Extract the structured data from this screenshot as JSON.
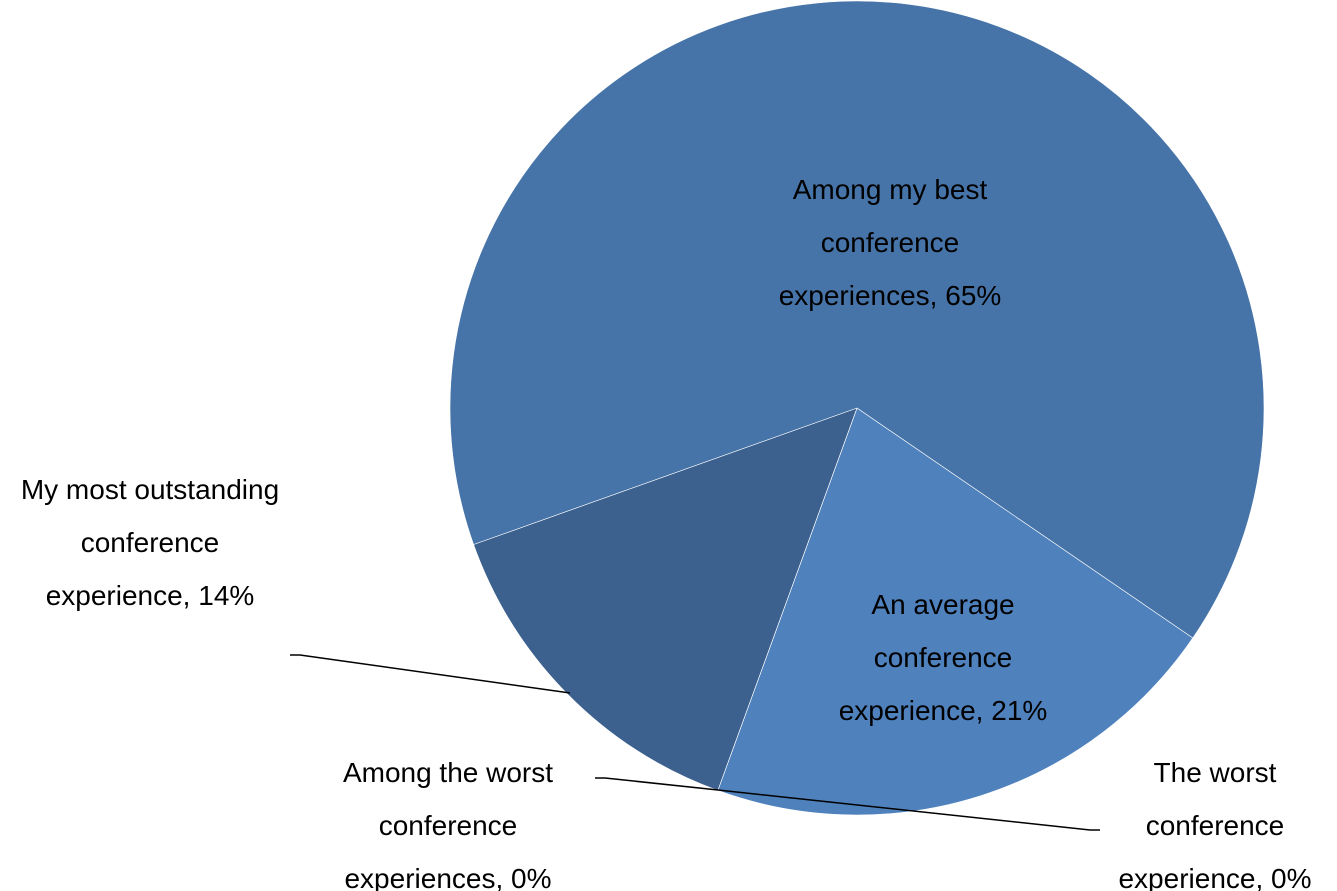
{
  "chart_data": {
    "type": "pie",
    "categories": [
      "An average conference experience",
      "Among the worst conference experiences",
      "The worst conference experience",
      "My most outstanding conference experience",
      "Among my best conference experiences"
    ],
    "values": [
      21,
      0,
      0,
      14,
      65
    ],
    "value_labels": [
      "An average conference experience, 21%",
      "Among the worst conference experiences, 0%",
      "The worst conference experience, 0%",
      "My most outstanding conference experience, 14%",
      "Among my best conference experiences, 65%"
    ],
    "colors": [
      "#4f81bd",
      "#c0504d",
      "#9bbb59",
      "#3c618f",
      "#4674a8"
    ]
  }
}
